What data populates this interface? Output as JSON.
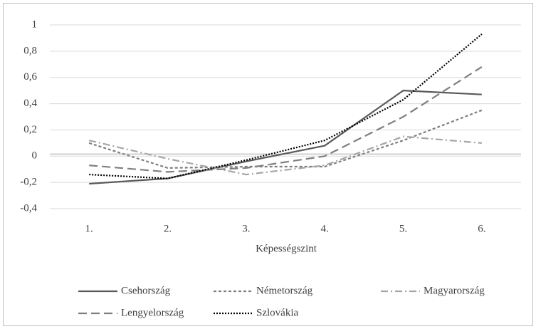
{
  "chart_data": {
    "type": "line",
    "x_label": "Képességszint",
    "categories": [
      "1.",
      "2.",
      "3.",
      "4.",
      "5.",
      "6."
    ],
    "series": [
      {
        "name": "Csehország",
        "color": "#595959",
        "dash": "solid",
        "values": [
          -0.21,
          -0.17,
          -0.04,
          0.08,
          0.5,
          0.47
        ]
      },
      {
        "name": "Németország",
        "color": "#7f7f7f",
        "dash": "dash",
        "values": [
          0.1,
          -0.09,
          -0.08,
          -0.08,
          0.12,
          0.35
        ]
      },
      {
        "name": "Magyarország",
        "color": "#a6a6a6",
        "dash": "dashdot",
        "values": [
          0.12,
          -0.02,
          -0.14,
          -0.07,
          0.15,
          0.1
        ]
      },
      {
        "name": "Lengyelország",
        "color": "#7f7f7f",
        "dash": "longdash",
        "values": [
          -0.07,
          -0.12,
          -0.09,
          0.0,
          0.3,
          0.68
        ]
      },
      {
        "name": "Szlovákia",
        "color": "#000000",
        "dash": "dot",
        "values": [
          -0.14,
          -0.17,
          -0.03,
          0.12,
          0.43,
          0.93
        ]
      }
    ],
    "ylim": [
      -0.4,
      1
    ],
    "yticks": [
      {
        "value": -0.4,
        "label": "-0,4"
      },
      {
        "value": -0.2,
        "label": "-0,2"
      },
      0,
      {
        "value": 0.2,
        "label": "0,2"
      },
      {
        "value": 0.4,
        "label": "0,4"
      },
      {
        "value": 0.6,
        "label": "0,6"
      },
      {
        "value": 0.8,
        "label": "0,8"
      },
      1
    ],
    "grid": true
  }
}
